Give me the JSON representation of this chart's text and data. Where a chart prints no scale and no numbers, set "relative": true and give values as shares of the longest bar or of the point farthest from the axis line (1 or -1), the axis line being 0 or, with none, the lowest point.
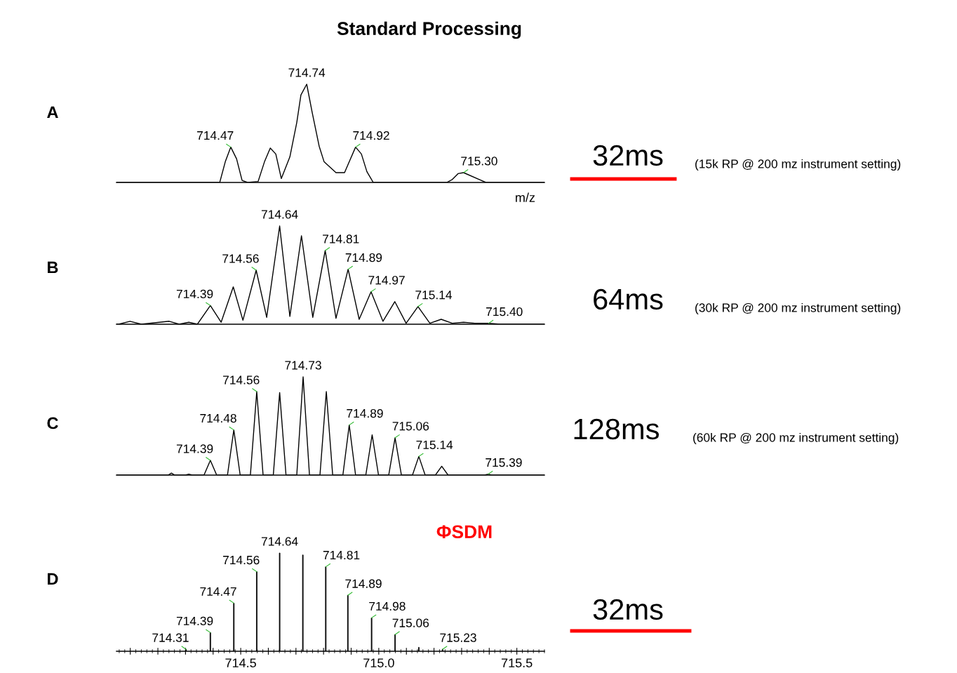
{
  "chart_data": [
    {
      "type": "line",
      "title": "A",
      "xlabel": "m/z",
      "relative": true,
      "xlim": [
        714.05,
        715.6
      ],
      "tick_labels": false,
      "series": [
        {
          "color": "#000000",
          "x": [
            714.05,
            714.424,
            714.444,
            714.464,
            714.485,
            714.505,
            714.525,
            714.563,
            714.586,
            714.607,
            714.627,
            714.647,
            714.678,
            714.703,
            714.718,
            714.739,
            714.759,
            714.784,
            714.802,
            714.845,
            714.876,
            714.896,
            714.916,
            714.937,
            714.957,
            714.98,
            715.246,
            715.266,
            715.287,
            715.307,
            715.388,
            715.6
          ],
          "values": [
            0,
            0,
            0.21,
            0.36,
            0.24,
            0.02,
            0,
            0.01,
            0.21,
            0.35,
            0.29,
            0.04,
            0.26,
            0.61,
            0.89,
            1,
            0.71,
            0.37,
            0.21,
            0.1,
            0.1,
            0.23,
            0.36,
            0.29,
            0.11,
            0,
            0,
            0.03,
            0.09,
            0.1,
            0,
            0
          ]
        }
      ],
      "annotations": [
        "Standard Processing",
        "32ms",
        "(15k RP @ 200 mz instrument setting)",
        {
          "text": "714.47",
          "x": 714.464,
          "y": 0.36
        },
        {
          "text": "714.74",
          "x": 714.739,
          "y": 1
        },
        {
          "text": "714.92",
          "x": 714.916,
          "y": 0.36
        },
        {
          "text": "715.30",
          "x": 715.307,
          "y": 0.1
        }
      ]
    },
    {
      "type": "line",
      "title": "B",
      "relative": true,
      "xlim": [
        714.05,
        715.6
      ],
      "tick_labels": false,
      "series": [
        {
          "color": "#000000",
          "x": [
            714.05,
            714.058,
            714.099,
            714.14,
            714.241,
            714.277,
            714.312,
            714.343,
            714.39,
            714.429,
            714.473,
            714.508,
            714.556,
            714.594,
            714.641,
            714.678,
            714.72,
            714.761,
            714.806,
            714.845,
            714.889,
            714.929,
            714.972,
            715.015,
            715.058,
            715.099,
            715.142,
            715.185,
            715.226,
            715.266,
            715.307,
            715.348,
            715.398,
            715.439,
            715.6
          ],
          "values": [
            0,
            0,
            0.03,
            0,
            0.03,
            0,
            0.02,
            0,
            0.19,
            0.02,
            0.38,
            0.04,
            0.55,
            0.07,
            1,
            0.08,
            0.9,
            0.07,
            0.75,
            0.06,
            0.56,
            0.05,
            0.33,
            0.03,
            0.23,
            0.01,
            0.18,
            0.01,
            0.05,
            0.01,
            0.02,
            0.01,
            0.01,
            0,
            0
          ]
        }
      ],
      "annotations": [
        "64ms",
        "(30k RP @ 200 mz instrument setting)",
        {
          "text": "714.39",
          "x": 714.39,
          "y": 0.19
        },
        {
          "text": "714.56",
          "x": 714.556,
          "y": 0.55
        },
        {
          "text": "714.64",
          "x": 714.641,
          "y": 1
        },
        {
          "text": "714.81",
          "x": 714.806,
          "y": 0.75
        },
        {
          "text": "714.89",
          "x": 714.889,
          "y": 0.56
        },
        {
          "text": "714.97",
          "x": 714.972,
          "y": 0.33
        },
        {
          "text": "715.14",
          "x": 715.142,
          "y": 0.18
        },
        {
          "text": "715.40",
          "x": 715.398,
          "y": 0.01
        }
      ]
    },
    {
      "type": "line",
      "title": "C",
      "relative": true,
      "xlim": [
        714.05,
        715.6
      ],
      "tick_labels": false,
      "series": [
        {
          "color": "#000000",
          "x": [
            714.05,
            714.237,
            714.249,
            714.261,
            714.3,
            714.312,
            714.324,
            714.367,
            714.39,
            714.413,
            714.452,
            714.475,
            714.498,
            714.535,
            714.558,
            714.581,
            714.618,
            714.641,
            714.664,
            714.703,
            714.726,
            714.749,
            714.787,
            714.81,
            714.833,
            714.87,
            714.893,
            714.916,
            714.953,
            714.976,
            714.999,
            715.036,
            715.059,
            715.082,
            715.122,
            715.145,
            715.168,
            715.205,
            715.228,
            715.251,
            715.384,
            715.396,
            715.408,
            715.6
          ],
          "values": [
            0,
            0,
            0.02,
            0,
            0,
            0.01,
            0,
            0,
            0.15,
            0,
            0,
            0.46,
            0,
            0,
            0.85,
            0,
            0,
            0.84,
            0,
            0,
            1,
            0,
            0,
            0.85,
            0,
            0,
            0.51,
            0,
            0,
            0.41,
            0,
            0,
            0.38,
            0,
            0,
            0.19,
            0,
            0,
            0.09,
            0,
            0,
            0.01,
            0,
            0
          ]
        }
      ],
      "annotations": [
        "128ms",
        "(60k RP @ 200 mz instrument setting)",
        {
          "text": "714.39",
          "x": 714.39,
          "y": 0.15
        },
        {
          "text": "714.48",
          "x": 714.475,
          "y": 0.46
        },
        {
          "text": "714.56",
          "x": 714.558,
          "y": 0.85
        },
        {
          "text": "714.73",
          "x": 714.726,
          "y": 1
        },
        {
          "text": "714.89",
          "x": 714.893,
          "y": 0.51
        },
        {
          "text": "715.06",
          "x": 715.059,
          "y": 0.38
        },
        {
          "text": "715.14",
          "x": 715.145,
          "y": 0.19
        },
        {
          "text": "715.39",
          "x": 715.396,
          "y": 0.01
        }
      ]
    },
    {
      "type": "bar",
      "title": "D",
      "relative": true,
      "xlim": [
        714.05,
        715.6
      ],
      "tick_labels": "x",
      "xticks": [
        {
          "value": 714.1,
          "label": null
        },
        {
          "value": 714.2,
          "label": null
        },
        {
          "value": 714.3,
          "label": null
        },
        {
          "value": 714.4,
          "label": null
        },
        714.5,
        {
          "value": 714.6,
          "label": null
        },
        {
          "value": 714.7,
          "label": null
        },
        {
          "value": 714.8,
          "label": null
        },
        {
          "value": 714.9,
          "label": null
        },
        {
          "value": 715.0,
          "label": "715.0"
        },
        {
          "value": 715.1,
          "label": null
        },
        {
          "value": 715.2,
          "label": null
        },
        {
          "value": 715.3,
          "label": null
        },
        {
          "value": 715.4,
          "label": null
        },
        715.5
      ],
      "series": [
        {
          "color": "#000000",
          "x": [
            714.302,
            714.39,
            714.475,
            714.558,
            714.641,
            714.725,
            714.808,
            714.888,
            714.974,
            715.059,
            715.145,
            715.231
          ],
          "values": [
            0.02,
            0.19,
            0.49,
            0.81,
            1,
            0.98,
            0.86,
            0.57,
            0.34,
            0.17,
            0.04,
            0.02
          ]
        }
      ],
      "annotations": [
        "ΦSDM",
        "32ms",
        {
          "text": "714.31",
          "x": 714.302,
          "y": 0.02
        },
        {
          "text": "714.39",
          "x": 714.39,
          "y": 0.19
        },
        {
          "text": "714.47",
          "x": 714.475,
          "y": 0.49
        },
        {
          "text": "714.56",
          "x": 714.558,
          "y": 0.81
        },
        {
          "text": "714.64",
          "x": 714.641,
          "y": 1
        },
        {
          "text": "714.81",
          "x": 714.808,
          "y": 0.86
        },
        {
          "text": "714.89",
          "x": 714.888,
          "y": 0.57
        },
        {
          "text": "714.98",
          "x": 714.974,
          "y": 0.34
        },
        {
          "text": "715.06",
          "x": 715.059,
          "y": 0.17
        },
        {
          "text": "715.23",
          "x": 715.231,
          "y": 0.02
        }
      ]
    }
  ]
}
